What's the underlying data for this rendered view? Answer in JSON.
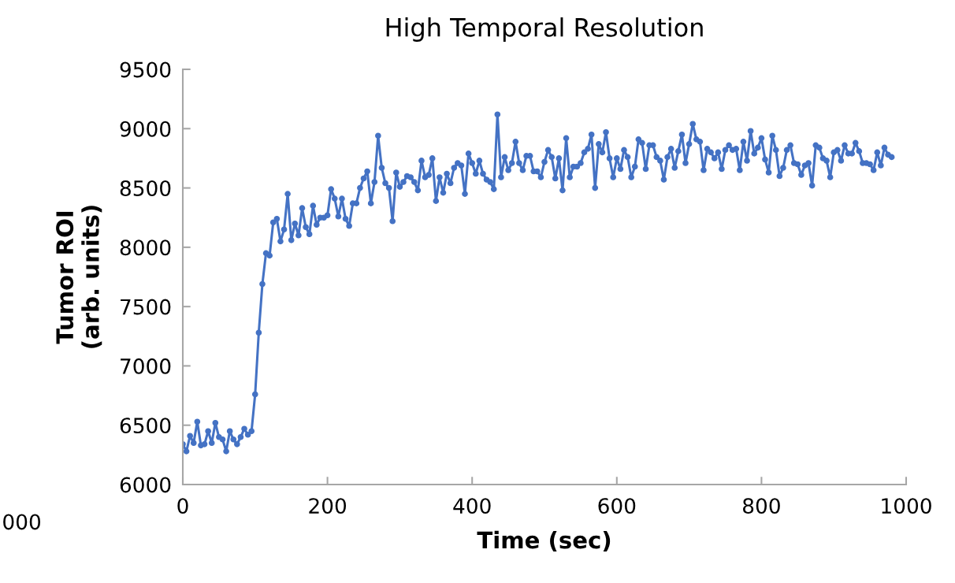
{
  "chart_data": {
    "type": "line",
    "title": "High Temporal Resolution",
    "xlabel": "Time (sec)",
    "ylabel": "Tumor ROI\n(arb. units)",
    "x": [
      0,
      5,
      10,
      15,
      20,
      25,
      30,
      35,
      40,
      45,
      50,
      55,
      60,
      65,
      70,
      75,
      80,
      85,
      90,
      95,
      100,
      105,
      110,
      115,
      120,
      125,
      130,
      135,
      140,
      145,
      150,
      155,
      160,
      165,
      170,
      175,
      180,
      185,
      190,
      195,
      200,
      205,
      210,
      215,
      220,
      225,
      230,
      235,
      240,
      245,
      250,
      255,
      260,
      265,
      270,
      275,
      280,
      285,
      290,
      295,
      300,
      305,
      310,
      315,
      320,
      325,
      330,
      335,
      340,
      345,
      350,
      355,
      360,
      365,
      370,
      375,
      380,
      385,
      390,
      395,
      400,
      405,
      410,
      415,
      420,
      425,
      430,
      435,
      440,
      445,
      450,
      455,
      460,
      465,
      470,
      475,
      480,
      485,
      490,
      495,
      500,
      505,
      510,
      515,
      520,
      525,
      530,
      535,
      540,
      545,
      550,
      555,
      560,
      565,
      570,
      575,
      580,
      585,
      590,
      595,
      600,
      605,
      610,
      615,
      620,
      625,
      630,
      635,
      640,
      645,
      650,
      655,
      660,
      665,
      670,
      675,
      680,
      685,
      690,
      695,
      700,
      705,
      710,
      715,
      720,
      725,
      730,
      735,
      740,
      745,
      750,
      755,
      760,
      765,
      770,
      775,
      780,
      785,
      790,
      795,
      800,
      805,
      810,
      815,
      820,
      825,
      830,
      835,
      840,
      845,
      850,
      855,
      860,
      865,
      870,
      875,
      880,
      885,
      890,
      895,
      900,
      905,
      910,
      915,
      920,
      925,
      930,
      935,
      940,
      945,
      950,
      955,
      960,
      965,
      970,
      975,
      980
    ],
    "series": [
      {
        "color": "#4472c4",
        "values": [
          6340,
          6280,
          6410,
          6350,
          6530,
          6330,
          6340,
          6450,
          6350,
          6520,
          6400,
          6380,
          6280,
          6450,
          6380,
          6340,
          6400,
          6470,
          6420,
          6450,
          6760,
          7280,
          7690,
          7950,
          7930,
          8210,
          8240,
          8050,
          8150,
          8450,
          8060,
          8200,
          8100,
          8330,
          8170,
          8110,
          8350,
          8190,
          8250,
          8250,
          8270,
          8490,
          8410,
          8260,
          8410,
          8240,
          8180,
          8370,
          8370,
          8500,
          8580,
          8640,
          8370,
          8550,
          8940,
          8670,
          8540,
          8500,
          8220,
          8630,
          8510,
          8550,
          8600,
          8590,
          8550,
          8480,
          8730,
          8590,
          8610,
          8750,
          8390,
          8590,
          8460,
          8620,
          8540,
          8670,
          8710,
          8690,
          8450,
          8790,
          8710,
          8620,
          8730,
          8620,
          8570,
          8550,
          8490,
          9120,
          8590,
          8760,
          8650,
          8710,
          8890,
          8710,
          8650,
          8770,
          8770,
          8640,
          8640,
          8590,
          8720,
          8820,
          8760,
          8580,
          8750,
          8480,
          8920,
          8590,
          8680,
          8680,
          8710,
          8800,
          8830,
          8950,
          8500,
          8870,
          8800,
          8970,
          8750,
          8590,
          8750,
          8660,
          8820,
          8760,
          8590,
          8680,
          8910,
          8880,
          8660,
          8860,
          8860,
          8760,
          8730,
          8570,
          8760,
          8830,
          8670,
          8810,
          8950,
          8710,
          8870,
          9040,
          8910,
          8890,
          8650,
          8830,
          8800,
          8750,
          8800,
          8660,
          8820,
          8860,
          8820,
          8830,
          8650,
          8890,
          8730,
          8980,
          8790,
          8840,
          8920,
          8740,
          8630,
          8940,
          8820,
          8600,
          8670,
          8820,
          8860,
          8710,
          8700,
          8610,
          8690,
          8710,
          8520,
          8860,
          8840,
          8750,
          8730,
          8590,
          8800,
          8820,
          8730,
          8860,
          8790,
          8790,
          8880,
          8810,
          8710,
          8710,
          8700,
          8650,
          8800,
          8690,
          8840,
          8780,
          8760
        ]
      }
    ],
    "xlim": [
      0,
      1000
    ],
    "xticks": [
      0,
      200,
      400,
      600,
      800,
      1000
    ],
    "ylim": [
      6000,
      9500
    ],
    "yticks": [
      6000,
      6500,
      7000,
      7500,
      8000,
      8500,
      9000,
      9500
    ],
    "marker": "circle",
    "line_style": "solid",
    "grid": false,
    "annotations": [
      "000"
    ]
  }
}
